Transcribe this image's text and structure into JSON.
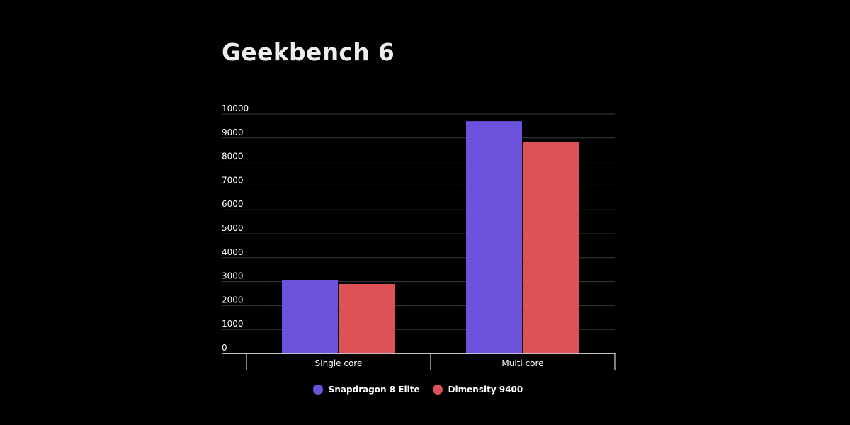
{
  "chart_data": {
    "type": "bar",
    "title": "Geekbench 6",
    "categories": [
      "Single core",
      "Multi core"
    ],
    "series": [
      {
        "name": "Snapdragon 8 Elite",
        "color": "#6c52dc",
        "values": [
          3050,
          9700
        ]
      },
      {
        "name": "Dimensity 9400",
        "color": "#dc5257",
        "values": [
          2900,
          8820
        ]
      }
    ],
    "y_ticks": [
      "0",
      "1000",
      "2000",
      "3000",
      "4000",
      "5000",
      "6000",
      "7000",
      "8000",
      "9000",
      "10000"
    ],
    "ylim": [
      0,
      10000
    ],
    "xlabel": "",
    "ylabel": "",
    "grid": true,
    "legend_position": "bottom-center"
  },
  "colors": {
    "background": "#000000",
    "gridline": "#3a3a3a",
    "axis": "#ffffff"
  }
}
